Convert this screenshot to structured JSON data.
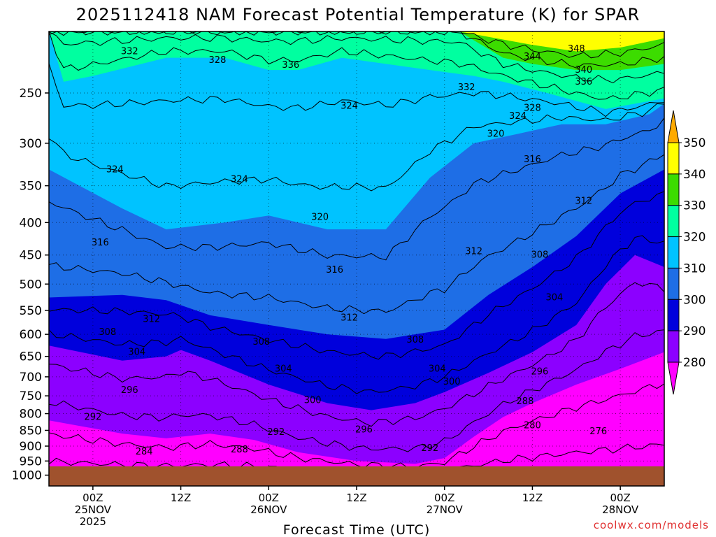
{
  "chart_data": {
    "type": "heatmap",
    "title": "2025112418 NAM Forecast Potential Temperature (K) for SPAR",
    "xlabel": "Forecast Time (UTC)",
    "ylabel": "",
    "credit": "coolwx.com/models",
    "y_axis": {
      "scale": "log-pressure",
      "range": [
        1000,
        200
      ],
      "ticks": [
        250,
        300,
        350,
        400,
        450,
        500,
        550,
        600,
        650,
        700,
        750,
        800,
        850,
        900,
        950,
        1000
      ]
    },
    "x_axis": {
      "range_hours": [
        -6,
        78
      ],
      "ticks": [
        {
          "h": 0,
          "line1": "00Z",
          "line2": "25NOV",
          "line3": "2025"
        },
        {
          "h": 12,
          "line1": "12Z",
          "line2": "",
          "line3": ""
        },
        {
          "h": 24,
          "line1": "00Z",
          "line2": "26NOV",
          "line3": ""
        },
        {
          "h": 36,
          "line1": "12Z",
          "line2": "",
          "line3": ""
        },
        {
          "h": 48,
          "line1": "00Z",
          "line2": "27NOV",
          "line3": ""
        },
        {
          "h": 60,
          "line1": "12Z",
          "line2": "",
          "line3": ""
        },
        {
          "h": 72,
          "line1": "00Z",
          "line2": "28NOV",
          "line3": ""
        }
      ]
    },
    "legend": {
      "placement": "right",
      "bins": [
        {
          "label": "280",
          "color": "#ff00ff"
        },
        {
          "label": "290",
          "color": "#8c00ff"
        },
        {
          "label": "300",
          "color": "#0000dc"
        },
        {
          "label": "310",
          "color": "#1e6ee6"
        },
        {
          "label": "320",
          "color": "#00c3ff"
        },
        {
          "label": "330",
          "color": "#00ffa0"
        },
        {
          "label": "340",
          "color": "#3cdc00"
        },
        {
          "label": "350",
          "color": "#ffff00"
        }
      ],
      "below_color": "#ff00ff",
      "above_color": "#ffaa00"
    },
    "ground_color": "#a0522d",
    "gridlines": true,
    "contour_levels": [
      276,
      280,
      284,
      288,
      292,
      296,
      300,
      304,
      308,
      312,
      316,
      320,
      324,
      328,
      332,
      336,
      340,
      344,
      348
    ],
    "bands": [
      {
        "level": 280,
        "color": "#8c00ff",
        "points": [
          [
            -6,
            820
          ],
          [
            4,
            860
          ],
          [
            10,
            875
          ],
          [
            16,
            860
          ],
          [
            22,
            880
          ],
          [
            28,
            920
          ],
          [
            36,
            950
          ],
          [
            44,
            960
          ],
          [
            48,
            940
          ],
          [
            52,
            870
          ],
          [
            56,
            810
          ],
          [
            60,
            770
          ],
          [
            66,
            720
          ],
          [
            72,
            680
          ],
          [
            78,
            640
          ]
        ]
      },
      {
        "level": 290,
        "color": "#0000dc",
        "points": [
          [
            -6,
            625
          ],
          [
            4,
            660
          ],
          [
            10,
            650
          ],
          [
            12,
            635
          ],
          [
            16,
            660
          ],
          [
            24,
            720
          ],
          [
            32,
            770
          ],
          [
            38,
            790
          ],
          [
            44,
            770
          ],
          [
            48,
            740
          ],
          [
            54,
            690
          ],
          [
            60,
            640
          ],
          [
            66,
            580
          ],
          [
            70,
            500
          ],
          [
            74,
            450
          ],
          [
            78,
            470
          ]
        ]
      },
      {
        "level": 300,
        "color": "#1e6ee6",
        "points": [
          [
            -6,
            525
          ],
          [
            4,
            520
          ],
          [
            10,
            530
          ],
          [
            16,
            560
          ],
          [
            24,
            580
          ],
          [
            32,
            600
          ],
          [
            40,
            610
          ],
          [
            48,
            590
          ],
          [
            54,
            520
          ],
          [
            60,
            470
          ],
          [
            66,
            420
          ],
          [
            72,
            360
          ],
          [
            78,
            330
          ]
        ]
      },
      {
        "level": 310,
        "color": "#00c3ff",
        "points": [
          [
            -6,
            330
          ],
          [
            4,
            380
          ],
          [
            10,
            410
          ],
          [
            18,
            400
          ],
          [
            24,
            390
          ],
          [
            32,
            410
          ],
          [
            40,
            410
          ],
          [
            46,
            340
          ],
          [
            52,
            300
          ],
          [
            58,
            290
          ],
          [
            64,
            280
          ],
          [
            70,
            280
          ],
          [
            76,
            270
          ],
          [
            78,
            260
          ]
        ]
      },
      {
        "level": 320,
        "color": "#00ffa0",
        "points": [
          [
            -6,
            200
          ],
          [
            -4,
            240
          ],
          [
            0,
            235
          ],
          [
            10,
            220
          ],
          [
            18,
            220
          ],
          [
            24,
            230
          ],
          [
            28,
            230
          ],
          [
            34,
            220
          ],
          [
            40,
            225
          ],
          [
            46,
            230
          ],
          [
            52,
            235
          ],
          [
            56,
            240
          ],
          [
            62,
            250
          ],
          [
            70,
            265
          ],
          [
            78,
            255
          ]
        ]
      },
      {
        "level": 330,
        "color": "#3cdc00",
        "points": [
          [
            -6,
            200
          ],
          [
            40,
            200
          ],
          [
            50,
            200
          ],
          [
            56,
            220
          ],
          [
            60,
            225
          ],
          [
            66,
            230
          ],
          [
            72,
            230
          ],
          [
            78,
            225
          ]
        ]
      },
      {
        "level": 340,
        "color": "#ffff00",
        "points": [
          [
            -6,
            200
          ],
          [
            50,
            200
          ],
          [
            60,
            210
          ],
          [
            66,
            215
          ],
          [
            72,
            212
          ],
          [
            78,
            205
          ]
        ]
      }
    ],
    "base_color": "#ff00ff",
    "labels": [
      {
        "text": "332",
        "h": 5,
        "p": 215
      },
      {
        "text": "328",
        "h": 17,
        "p": 222
      },
      {
        "text": "336",
        "h": 27,
        "p": 226
      },
      {
        "text": "344",
        "h": 60,
        "p": 219
      },
      {
        "text": "348",
        "h": 66,
        "p": 213
      },
      {
        "text": "340",
        "h": 67,
        "p": 230
      },
      {
        "text": "336",
        "h": 67,
        "p": 240
      },
      {
        "text": "332",
        "h": 51,
        "p": 245
      },
      {
        "text": "328",
        "h": 60,
        "p": 264
      },
      {
        "text": "324",
        "h": 35,
        "p": 262
      },
      {
        "text": "324",
        "h": 58,
        "p": 272
      },
      {
        "text": "320",
        "h": 55,
        "p": 290
      },
      {
        "text": "316",
        "h": 60,
        "p": 318
      },
      {
        "text": "324",
        "h": 3,
        "p": 330
      },
      {
        "text": "324",
        "h": 20,
        "p": 342
      },
      {
        "text": "312",
        "h": 67,
        "p": 370
      },
      {
        "text": "320",
        "h": 31,
        "p": 392
      },
      {
        "text": "316",
        "h": 1,
        "p": 430
      },
      {
        "text": "312",
        "h": 52,
        "p": 444
      },
      {
        "text": "308",
        "h": 61,
        "p": 450
      },
      {
        "text": "316",
        "h": 33,
        "p": 475
      },
      {
        "text": "304",
        "h": 63,
        "p": 525
      },
      {
        "text": "312",
        "h": 8,
        "p": 568
      },
      {
        "text": "312",
        "h": 35,
        "p": 565
      },
      {
        "text": "308",
        "h": 2,
        "p": 595
      },
      {
        "text": "308",
        "h": 23,
        "p": 617
      },
      {
        "text": "308",
        "h": 44,
        "p": 612
      },
      {
        "text": "304",
        "h": 6,
        "p": 640
      },
      {
        "text": "304",
        "h": 26,
        "p": 680
      },
      {
        "text": "304",
        "h": 47,
        "p": 680
      },
      {
        "text": "296",
        "h": 61,
        "p": 687
      },
      {
        "text": "300",
        "h": 49,
        "p": 713
      },
      {
        "text": "296",
        "h": 5,
        "p": 735
      },
      {
        "text": "300",
        "h": 30,
        "p": 762
      },
      {
        "text": "288",
        "h": 59,
        "p": 765
      },
      {
        "text": "292",
        "h": 0,
        "p": 810
      },
      {
        "text": "280",
        "h": 60,
        "p": 835
      },
      {
        "text": "276",
        "h": 69,
        "p": 853
      },
      {
        "text": "292",
        "h": 25,
        "p": 855
      },
      {
        "text": "296",
        "h": 37,
        "p": 848
      },
      {
        "text": "292",
        "h": 46,
        "p": 907
      },
      {
        "text": "284",
        "h": 7,
        "p": 918
      },
      {
        "text": "288",
        "h": 20,
        "p": 912
      }
    ]
  }
}
